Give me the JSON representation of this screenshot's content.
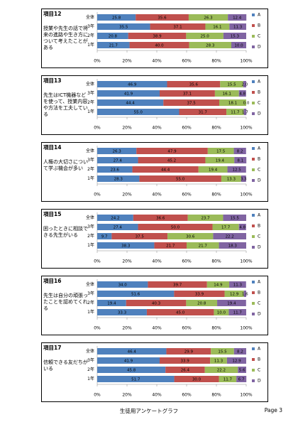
{
  "chart_data": [
    {
      "type": "bar",
      "orientation": "horizontal",
      "stacked": true,
      "label": "項目12",
      "title": "授業や先生の話で将来の進路や生き方について考えたことがある",
      "categories": [
        "全体",
        "3年",
        "2年",
        "1年"
      ],
      "series": [
        {
          "name": "A",
          "color": "#4f81bd",
          "values": [
            25.8,
            35.5,
            20.8,
            21.7
          ],
          "value_labels": [
            "25.8",
            "35.5",
            "20.8",
            "21.7"
          ]
        },
        {
          "name": "B",
          "color": "#c0504d",
          "values": [
            35.6,
            37.1,
            38.9,
            40.0
          ],
          "value_labels": [
            "35.6",
            "37.1",
            "38.9",
            "40.0"
          ]
        },
        {
          "name": "C",
          "color": "#9bbb59",
          "values": [
            26.3,
            16.1,
            25.0,
            28.3
          ],
          "value_labels": [
            "26.3",
            "16.1",
            "25.0",
            "28.3"
          ]
        },
        {
          "name": "D",
          "color": "#8064a2",
          "values": [
            12.4,
            11.3,
            15.3,
            10.0
          ],
          "value_labels": [
            "12.4",
            "11.3",
            "15.3",
            "10.0"
          ]
        }
      ],
      "xlim": [
        0,
        100
      ],
      "xticks": [
        {
          "value": 0,
          "label": "0%"
        },
        {
          "value": 20,
          "label": "20%"
        },
        {
          "value": 40,
          "label": "40%"
        },
        {
          "value": 60,
          "label": "60%"
        },
        {
          "value": 80,
          "label": "80%"
        },
        {
          "value": 100,
          "label": "100%"
        }
      ]
    },
    {
      "type": "bar",
      "orientation": "horizontal",
      "stacked": true,
      "label": "項目13",
      "title": "先生はICT機器などを使って、授業内容や方法を工夫している",
      "categories": [
        "全体",
        "3年",
        "2年",
        "1年"
      ],
      "series": [
        {
          "name": "A",
          "color": "#4f81bd",
          "values": [
            46.9,
            41.9,
            44.4,
            55.0
          ],
          "value_labels": [
            "46.9",
            "41.9",
            "44.4",
            "55.0"
          ]
        },
        {
          "name": "B",
          "color": "#c0504d",
          "values": [
            35.6,
            37.1,
            37.5,
            31.7
          ],
          "value_labels": [
            "35.6",
            "37.1",
            "37.5",
            "31.7"
          ]
        },
        {
          "name": "C",
          "color": "#9bbb59",
          "values": [
            15.5,
            16.1,
            18.1,
            11.7
          ],
          "value_labels": [
            "15.5",
            "16.1",
            "18.1",
            "11.7"
          ]
        },
        {
          "name": "D",
          "color": "#8064a2",
          "values": [
            2.0,
            4.8,
            0.0,
            1.7
          ],
          "value_labels": [
            "2.0",
            "4.8",
            "0.0",
            "1.7"
          ]
        }
      ],
      "xlim": [
        0,
        100
      ],
      "xticks": [
        {
          "value": 0,
          "label": "0%"
        },
        {
          "value": 20,
          "label": "20%"
        },
        {
          "value": 40,
          "label": "40%"
        },
        {
          "value": 60,
          "label": "60%"
        },
        {
          "value": 80,
          "label": "80%"
        },
        {
          "value": 100,
          "label": "100%"
        }
      ]
    },
    {
      "type": "bar",
      "orientation": "horizontal",
      "stacked": true,
      "label": "項目14",
      "title": "人権の大切さについて学ぶ機会が多い",
      "categories": [
        "全体",
        "3年",
        "2年",
        "1年"
      ],
      "series": [
        {
          "name": "A",
          "color": "#4f81bd",
          "values": [
            26.3,
            27.4,
            23.6,
            28.3
          ],
          "value_labels": [
            "26.3",
            "27.4",
            "23.6",
            "28.3"
          ]
        },
        {
          "name": "B",
          "color": "#c0504d",
          "values": [
            47.9,
            45.2,
            44.4,
            55.0
          ],
          "value_labels": [
            "47.9",
            "45.2",
            "44.4",
            "55.0"
          ]
        },
        {
          "name": "C",
          "color": "#9bbb59",
          "values": [
            17.5,
            19.4,
            19.4,
            13.3
          ],
          "value_labels": [
            "17.5",
            "19.4",
            "19.4",
            "13.3"
          ]
        },
        {
          "name": "D",
          "color": "#8064a2",
          "values": [
            8.2,
            8.1,
            12.5,
            3.3
          ],
          "value_labels": [
            "8.2",
            "8.1",
            "12.5",
            "3.3"
          ]
        }
      ],
      "xlim": [
        0,
        100
      ],
      "xticks": [
        {
          "value": 0,
          "label": "0%"
        },
        {
          "value": 20,
          "label": "20%"
        },
        {
          "value": 40,
          "label": "40%"
        },
        {
          "value": 60,
          "label": "60%"
        },
        {
          "value": 80,
          "label": "80%"
        },
        {
          "value": 100,
          "label": "100%"
        }
      ]
    },
    {
      "type": "bar",
      "orientation": "horizontal",
      "stacked": true,
      "label": "項目15",
      "title": "困ったときに相談できる先生がいる",
      "categories": [
        "全体",
        "3年",
        "2年",
        "1年"
      ],
      "series": [
        {
          "name": "A",
          "color": "#4f81bd",
          "values": [
            24.2,
            27.4,
            9.7,
            38.3
          ],
          "value_labels": [
            "24.2",
            "27.4",
            "9.7",
            "38.3"
          ]
        },
        {
          "name": "B",
          "color": "#c0504d",
          "values": [
            36.6,
            50.0,
            37.5,
            21.7
          ],
          "value_labels": [
            "36.6",
            "50.0",
            "37.5",
            "21.7"
          ]
        },
        {
          "name": "C",
          "color": "#9bbb59",
          "values": [
            23.7,
            17.7,
            30.6,
            21.7
          ],
          "value_labels": [
            "23.7",
            "17.7",
            "30.6",
            "21.7"
          ]
        },
        {
          "name": "D",
          "color": "#8064a2",
          "values": [
            15.5,
            4.8,
            22.2,
            18.3
          ],
          "value_labels": [
            "15.5",
            "4.8",
            "22.2",
            "18.3"
          ]
        }
      ],
      "xlim": [
        0,
        100
      ],
      "xticks": [
        {
          "value": 0,
          "label": "0%"
        },
        {
          "value": 20,
          "label": "20%"
        },
        {
          "value": 40,
          "label": "40%"
        },
        {
          "value": 60,
          "label": "60%"
        },
        {
          "value": 80,
          "label": "80%"
        },
        {
          "value": 100,
          "label": "100%"
        }
      ]
    },
    {
      "type": "bar",
      "orientation": "horizontal",
      "stacked": true,
      "label": "項目16",
      "title": "先生は自分の頑張ったことを認めてくれる",
      "categories": [
        "全体",
        "3年",
        "2年",
        "1年"
      ],
      "series": [
        {
          "name": "A",
          "color": "#4f81bd",
          "values": [
            34.0,
            51.6,
            19.4,
            33.3
          ],
          "value_labels": [
            "34.0",
            "51.6",
            "19.4",
            "33.3"
          ]
        },
        {
          "name": "B",
          "color": "#c0504d",
          "values": [
            39.7,
            33.9,
            40.3,
            45.0
          ],
          "value_labels": [
            "39.7",
            "33.9",
            "40.3",
            "45.0"
          ]
        },
        {
          "name": "C",
          "color": "#9bbb59",
          "values": [
            14.9,
            12.9,
            20.8,
            10.0
          ],
          "value_labels": [
            "14.9",
            "12.9",
            "20.8",
            "10.0"
          ]
        },
        {
          "name": "D",
          "color": "#8064a2",
          "values": [
            11.3,
            1.6,
            19.4,
            11.7
          ],
          "value_labels": [
            "11.3",
            "1.6",
            "19.4",
            "11.7"
          ]
        }
      ],
      "xlim": [
        0,
        100
      ],
      "xticks": [
        {
          "value": 0,
          "label": "0%"
        },
        {
          "value": 20,
          "label": "20%"
        },
        {
          "value": 40,
          "label": "40%"
        },
        {
          "value": 60,
          "label": "60%"
        },
        {
          "value": 80,
          "label": "80%"
        },
        {
          "value": 100,
          "label": "100%"
        }
      ]
    },
    {
      "type": "bar",
      "orientation": "horizontal",
      "stacked": true,
      "label": "項目17",
      "title": "信頼できる友だちがいる",
      "categories": [
        "全体",
        "3年",
        "2年",
        "1年"
      ],
      "series": [
        {
          "name": "A",
          "color": "#4f81bd",
          "values": [
            46.4,
            41.9,
            45.8,
            51.7
          ],
          "value_labels": [
            "46.4",
            "41.9",
            "45.8",
            "51.7"
          ]
        },
        {
          "name": "B",
          "color": "#c0504d",
          "values": [
            29.9,
            33.9,
            26.4,
            30.0
          ],
          "value_labels": [
            "29.9",
            "33.9",
            "26.4",
            "30.0"
          ]
        },
        {
          "name": "C",
          "color": "#9bbb59",
          "values": [
            15.5,
            11.3,
            22.2,
            11.7
          ],
          "value_labels": [
            "15.5",
            "11.3",
            "22.2",
            "11.7"
          ]
        },
        {
          "name": "D",
          "color": "#8064a2",
          "values": [
            8.2,
            12.9,
            5.6,
            6.7
          ],
          "value_labels": [
            "8.2",
            "12.9",
            "5.6",
            "6.7"
          ]
        }
      ],
      "xlim": [
        0,
        100
      ],
      "xticks": [
        {
          "value": 0,
          "label": "0%"
        },
        {
          "value": 20,
          "label": "20%"
        },
        {
          "value": 40,
          "label": "40%"
        },
        {
          "value": 60,
          "label": "60%"
        },
        {
          "value": 80,
          "label": "80%"
        },
        {
          "value": 100,
          "label": "100%"
        }
      ]
    }
  ],
  "footer": {
    "title": "生徒用アンケートグラフ",
    "page": "Page 3"
  }
}
